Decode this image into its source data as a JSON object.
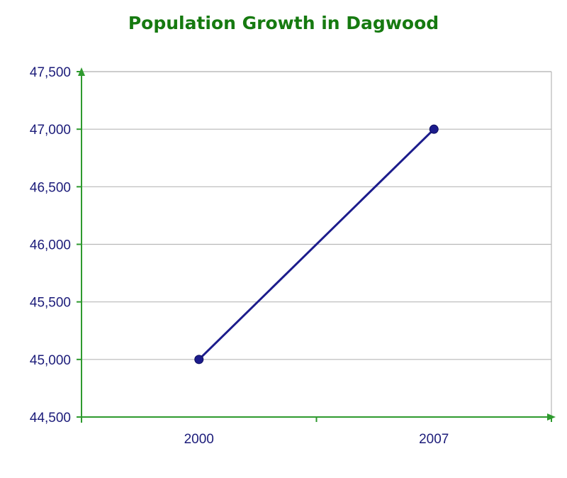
{
  "chart_data": {
    "type": "line",
    "title": "Population Growth in Dagwood",
    "xlabel": "",
    "ylabel": "",
    "categories": [
      "2000",
      "2007"
    ],
    "series": [
      {
        "values": [
          45000,
          47000
        ]
      }
    ],
    "ylim": [
      44500,
      47500
    ],
    "yticks": [
      44500,
      45000,
      45500,
      46000,
      46500,
      47000,
      47500
    ],
    "ytick_labels": [
      "44,500",
      "45,000",
      "45,500",
      "46,000",
      "46,500",
      "47,000",
      "47,500"
    ],
    "grid": true,
    "legend": "none",
    "colors": {
      "title": "#167a10",
      "axis": "#2e9a2e",
      "line": "#1c1c8c",
      "grid": "#b8b8b8",
      "tick_text": "#1c1c7a"
    }
  }
}
